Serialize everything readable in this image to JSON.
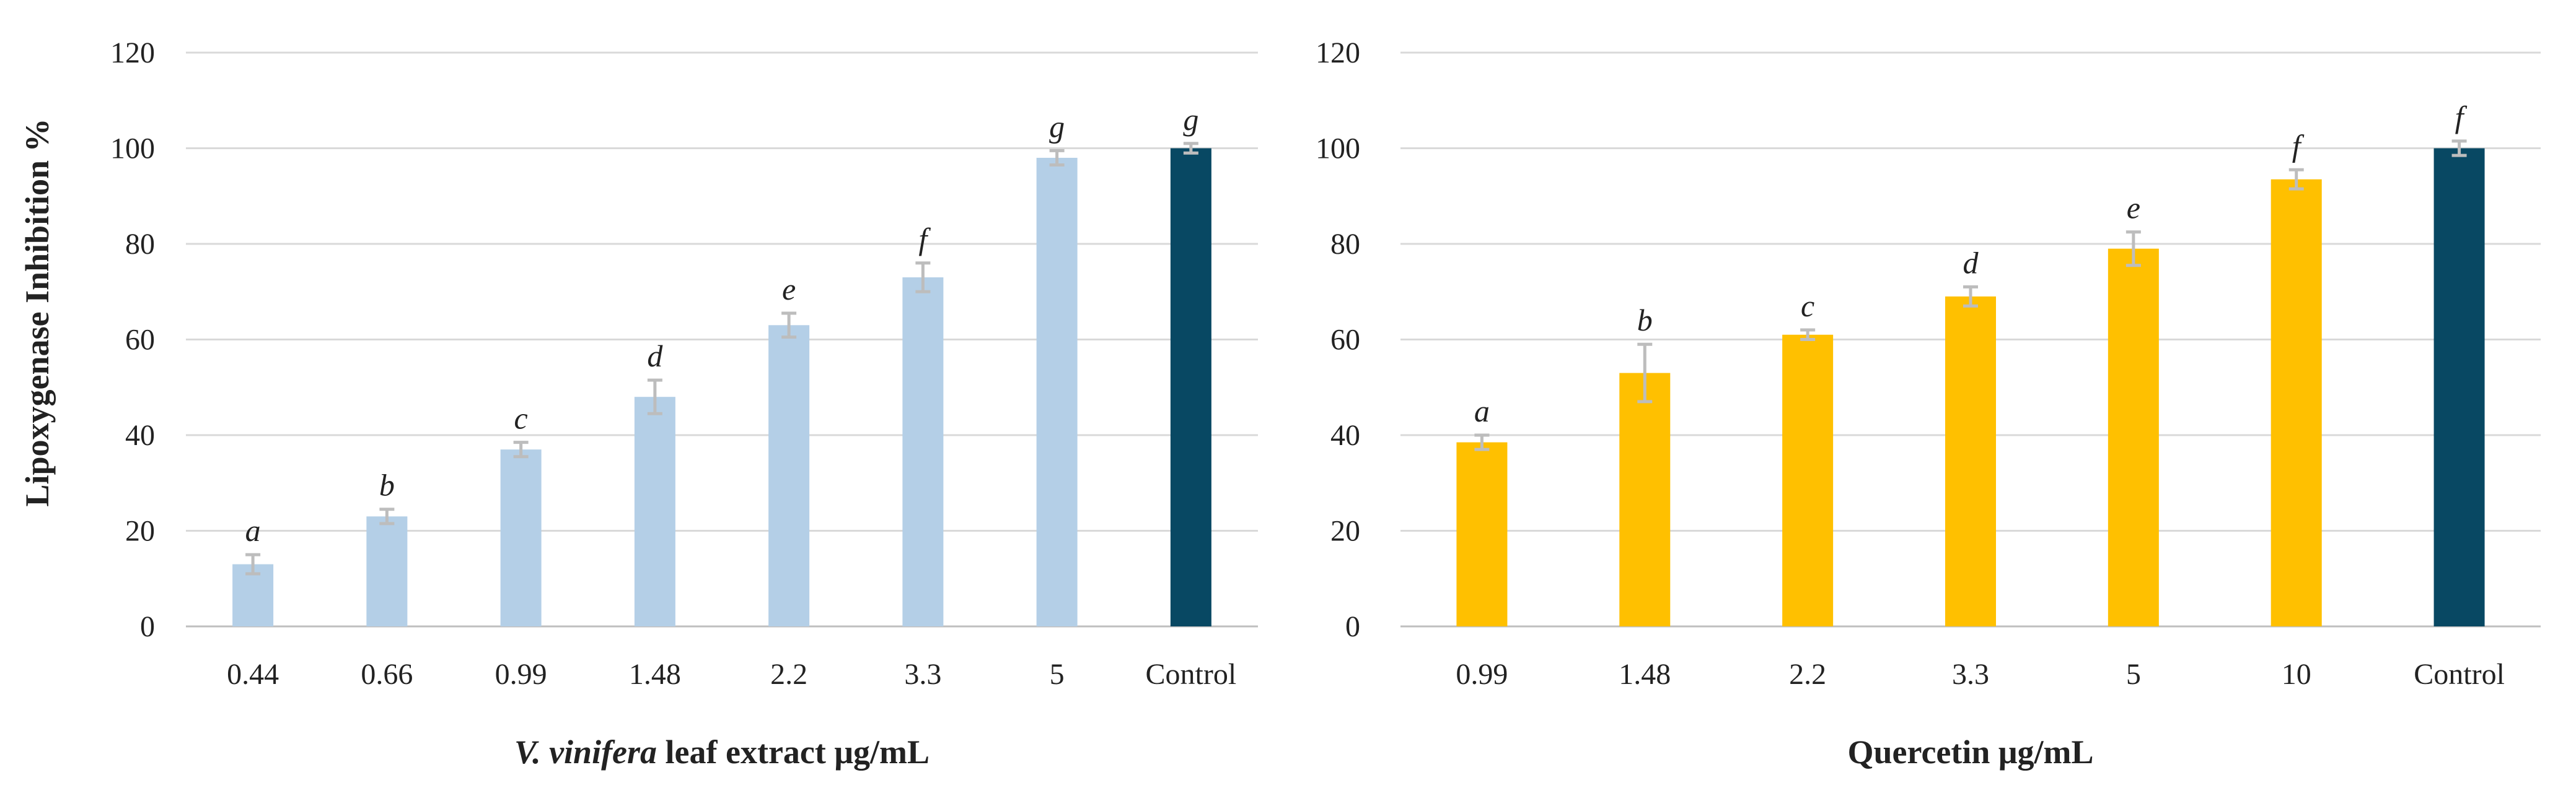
{
  "ylabel": "Lipoxygenase Inhibition %",
  "chart_data": [
    {
      "type": "bar",
      "title": "",
      "ylabel": "Lipoxygenase Inhibition %",
      "xlabel_italic": "V. vinifera",
      "xlabel_rest": "leaf extract μg/mL",
      "ylim": [
        0,
        120
      ],
      "yticks": [
        0,
        20,
        40,
        60,
        80,
        100,
        120
      ],
      "categories": [
        "0.44",
        "0.66",
        "0.99",
        "1.48",
        "2.2",
        "3.3",
        "5",
        "Control"
      ],
      "values": [
        13,
        23,
        37,
        48,
        63,
        73,
        98,
        100
      ],
      "errors": [
        2,
        1.5,
        1.5,
        3.5,
        2.5,
        3,
        1.5,
        1
      ],
      "letters": [
        "a",
        "b",
        "c",
        "d",
        "e",
        "f",
        "g",
        "g"
      ],
      "colors": [
        "#b4cfe7",
        "#b4cfe7",
        "#b4cfe7",
        "#b4cfe7",
        "#b4cfe7",
        "#b4cfe7",
        "#b4cfe7",
        "#084863"
      ]
    },
    {
      "type": "bar",
      "title": "",
      "xlabel_italic": "",
      "xlabel_rest": "Quercetin μg/mL",
      "ylim": [
        0,
        120
      ],
      "yticks": [
        0,
        20,
        40,
        60,
        80,
        100,
        120
      ],
      "categories": [
        "0.99",
        "1.48",
        "2.2",
        "3.3",
        "5",
        "10",
        "Control"
      ],
      "values": [
        38.5,
        53,
        61,
        69,
        79,
        93.5,
        100
      ],
      "errors": [
        1.5,
        6,
        1,
        2,
        3.5,
        2,
        1.5
      ],
      "letters": [
        "a",
        "b",
        "c",
        "d",
        "e",
        "f",
        "f"
      ],
      "colors": [
        "#ffc000",
        "#ffc000",
        "#ffc000",
        "#ffc000",
        "#ffc000",
        "#ffc000",
        "#084863"
      ]
    }
  ]
}
